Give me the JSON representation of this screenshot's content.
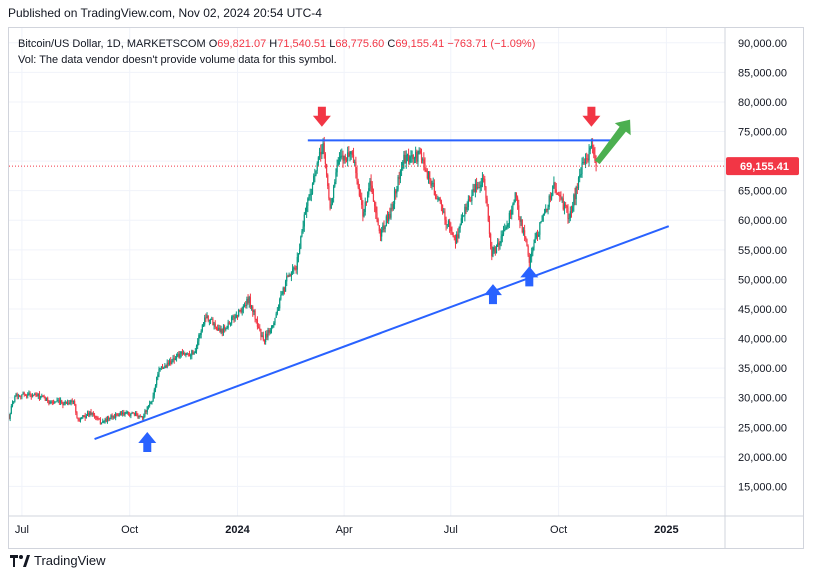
{
  "header": {
    "published": "Published on TradingView.com, Nov 02, 2024 20:54 UTC-4"
  },
  "legend": {
    "symbol": "Bitcoin/US Dollar, 1D, MARKETSCOM",
    "o_label": "O",
    "open": "69,821.07",
    "h_label": "H",
    "high": "71,540.51",
    "l_label": "L",
    "low": "68,775.60",
    "c_label": "C",
    "close": "69,155.41",
    "change": "−763.71 (−1.09%)",
    "volume_note": "Vol: The data vendor doesn't provide volume data for this symbol."
  },
  "footer": {
    "brand": "TradingView"
  },
  "colors": {
    "up": "#089981",
    "down": "#f23645",
    "trendline": "#2962ff",
    "up_arrow": "#2962ff",
    "down_arrow": "#f23645",
    "breakout_arrow": "#4caf50",
    "price_label_bg": "#f23645"
  },
  "chart_data": {
    "type": "candlestick",
    "title": "Bitcoin/US Dollar, 1D, MARKETSCOM",
    "y_axis": {
      "ticks": [
        15000,
        20000,
        25000,
        30000,
        35000,
        40000,
        45000,
        50000,
        55000,
        60000,
        65000,
        70000,
        75000,
        80000,
        85000,
        90000
      ],
      "tick_labels": [
        "15,000.00",
        "20,000.00",
        "25,000.00",
        "30,000.00",
        "35,000.00",
        "40,000.00",
        "45,000.00",
        "50,000.00",
        "55,000.00",
        "60,000.00",
        "65,000.00",
        "70,000.00",
        "75,000.00",
        "80,000.00",
        "85,000.00",
        "90,000.00"
      ],
      "range": [
        10000,
        92500
      ],
      "position": "right"
    },
    "x_axis": {
      "tick_labels": [
        "Jul",
        "Oct",
        "2024",
        "Apr",
        "Jul",
        "Oct",
        "2025"
      ],
      "tick_dates": [
        "2023-07-01",
        "2023-10-01",
        "2024-01-01",
        "2024-04-01",
        "2024-07-01",
        "2024-10-01",
        "2025-01-01"
      ],
      "range": [
        "2023-06-20",
        "2025-02-20"
      ]
    },
    "last_price": 69155.41,
    "last_price_label": "69,155.41",
    "series_points": [
      [
        "2023-06-20",
        26800
      ],
      [
        "2023-06-25",
        30500
      ],
      [
        "2023-07-05",
        30600
      ],
      [
        "2023-07-15",
        30300
      ],
      [
        "2023-07-25",
        29300
      ],
      [
        "2023-08-05",
        29100
      ],
      [
        "2023-08-14",
        29400
      ],
      [
        "2023-08-18",
        26200
      ],
      [
        "2023-08-29",
        27500
      ],
      [
        "2023-09-06",
        25800
      ],
      [
        "2023-09-20",
        27100
      ],
      [
        "2023-10-01",
        27300
      ],
      [
        "2023-10-12",
        26800
      ],
      [
        "2023-10-20",
        29500
      ],
      [
        "2023-10-25",
        34300
      ],
      [
        "2023-11-10",
        37000
      ],
      [
        "2023-11-25",
        37700
      ],
      [
        "2023-12-05",
        44000
      ],
      [
        "2023-12-18",
        41300
      ],
      [
        "2024-01-01",
        44200
      ],
      [
        "2024-01-11",
        46500
      ],
      [
        "2024-01-23",
        39500
      ],
      [
        "2024-02-01",
        43000
      ],
      [
        "2024-02-12",
        49800
      ],
      [
        "2024-02-20",
        52000
      ],
      [
        "2024-02-28",
        62000
      ],
      [
        "2024-03-05",
        66000
      ],
      [
        "2024-03-14",
        73000
      ],
      [
        "2024-03-20",
        62000
      ],
      [
        "2024-03-27",
        70000
      ],
      [
        "2024-04-08",
        71500
      ],
      [
        "2024-04-17",
        61000
      ],
      [
        "2024-04-23",
        66500
      ],
      [
        "2024-05-01",
        57500
      ],
      [
        "2024-05-10",
        61000
      ],
      [
        "2024-05-21",
        70000
      ],
      [
        "2024-06-05",
        71000
      ],
      [
        "2024-06-15",
        66000
      ],
      [
        "2024-06-25",
        61000
      ],
      [
        "2024-07-05",
        56500
      ],
      [
        "2024-07-15",
        63000
      ],
      [
        "2024-07-29",
        67500
      ],
      [
        "2024-08-05",
        54000
      ],
      [
        "2024-08-15",
        57500
      ],
      [
        "2024-08-25",
        64000
      ],
      [
        "2024-09-06",
        53500
      ],
      [
        "2024-09-15",
        59000
      ],
      [
        "2024-09-27",
        65800
      ],
      [
        "2024-10-10",
        60500
      ],
      [
        "2024-10-20",
        68300
      ],
      [
        "2024-10-29",
        72500
      ],
      [
        "2024-11-02",
        69155
      ]
    ],
    "annotations": [
      {
        "type": "trendline",
        "label": "resistance",
        "from": [
          "2024-03-01",
          73500
        ],
        "to": [
          "2024-11-15",
          73500
        ]
      },
      {
        "type": "trendline",
        "label": "support",
        "from": [
          "2023-09-01",
          23000
        ],
        "to": [
          "2025-01-03",
          59000
        ]
      },
      {
        "type": "arrow-down",
        "at": [
          "2024-03-13",
          77500
        ]
      },
      {
        "type": "arrow-down",
        "at": [
          "2024-10-29",
          77500
        ]
      },
      {
        "type": "arrow-up",
        "at": [
          "2023-10-16",
          22500
        ]
      },
      {
        "type": "arrow-up",
        "at": [
          "2024-08-06",
          47500
        ]
      },
      {
        "type": "arrow-up",
        "at": [
          "2024-09-06",
          50500
        ]
      },
      {
        "type": "arrow-up-right",
        "from": [
          "2024-11-03",
          69800
        ],
        "to": [
          "2024-12-01",
          77000
        ]
      }
    ]
  }
}
